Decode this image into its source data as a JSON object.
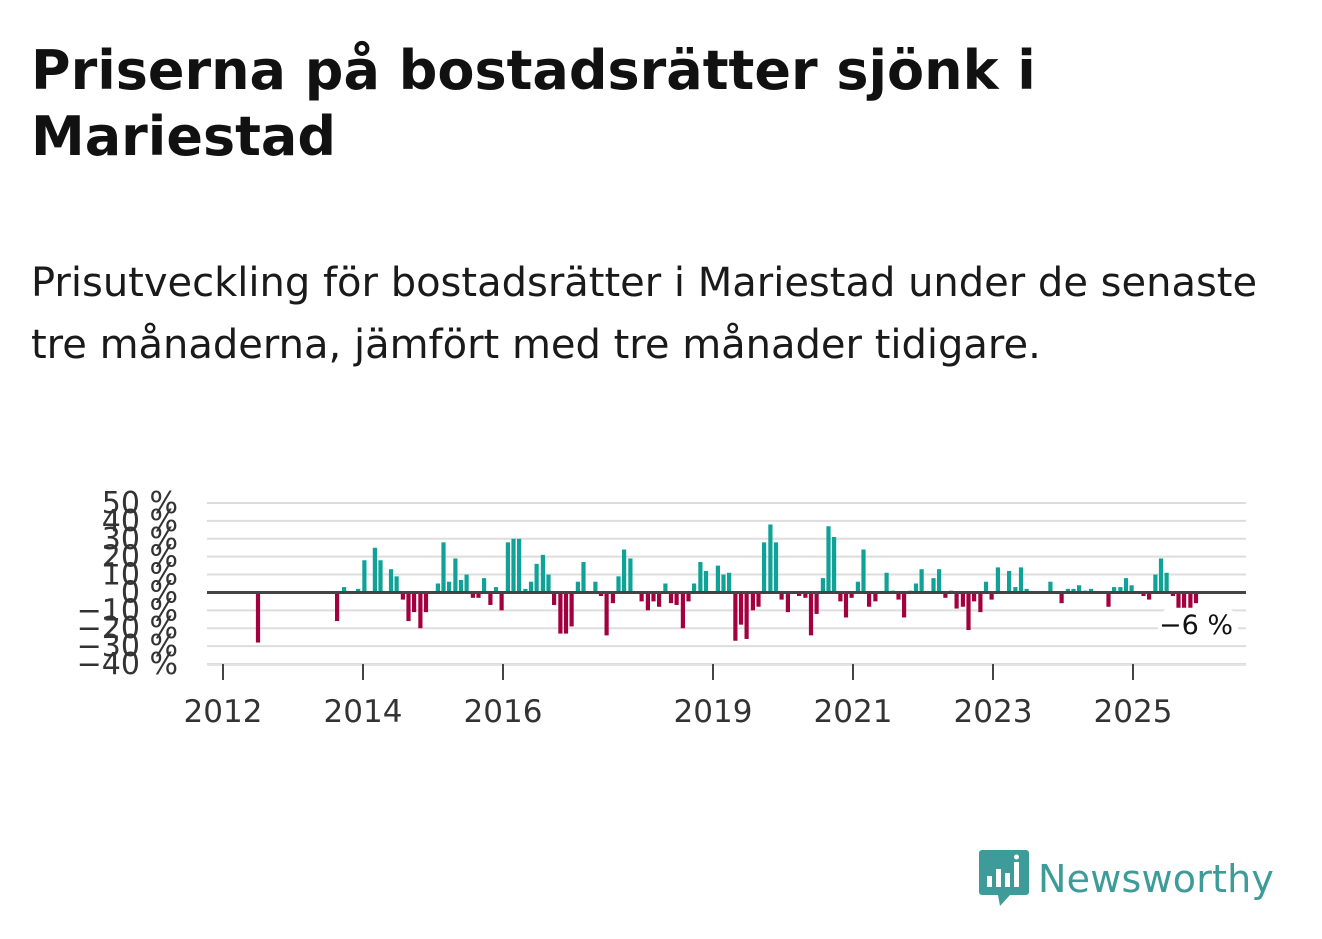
{
  "title": "Priserna på bostadsrätter sjönk i Mariestad",
  "subtitle": "Prisutveckling för bostadsrätter i Mariestad under de senaste tre månaderna, jämfört med tre månader tidigare.",
  "brand": {
    "name": "Newsworthy",
    "color": "#3d9c9a",
    "icon": "newsworthy-chart-icon"
  },
  "colors": {
    "positive": "#0fa397",
    "negative": "#a3003f",
    "zero_line": "#444444",
    "grid": "#dddddd"
  },
  "chart_data": {
    "type": "bar",
    "title": "",
    "xlabel": "",
    "ylabel": "",
    "ylim": [
      -40,
      50
    ],
    "y_ticks": [
      -40,
      -30,
      -20,
      -10,
      0,
      10,
      20,
      30,
      40,
      50
    ],
    "y_tick_labels": [
      "−40 %",
      "−30 %",
      "−20 %",
      "−10 %",
      "0 %",
      "10 %",
      "20 %",
      "30 %",
      "40 %",
      "50 %"
    ],
    "x_ticks": [
      2012,
      2014,
      2016,
      2019,
      2021,
      2023,
      2025
    ],
    "x_tick_labels": [
      "2012",
      "2014",
      "2016",
      "2019",
      "2021",
      "2023",
      "2025"
    ],
    "x_start": 2012,
    "end_label": "−6 %",
    "series": [
      {
        "name": "Prisutveckling",
        "points": [
          [
            2012.5,
            -28
          ],
          [
            2013.63,
            -16
          ],
          [
            2013.73,
            3
          ],
          [
            2013.93,
            2
          ],
          [
            2014.02,
            18
          ],
          [
            2014.17,
            25
          ],
          [
            2014.25,
            18
          ],
          [
            2014.4,
            13
          ],
          [
            2014.48,
            9
          ],
          [
            2014.57,
            -4
          ],
          [
            2014.65,
            -16
          ],
          [
            2014.73,
            -11
          ],
          [
            2014.82,
            -20
          ],
          [
            2014.9,
            -11
          ],
          [
            2015.07,
            5
          ],
          [
            2015.15,
            28
          ],
          [
            2015.23,
            6
          ],
          [
            2015.32,
            19
          ],
          [
            2015.4,
            7
          ],
          [
            2015.48,
            10
          ],
          [
            2015.57,
            -3
          ],
          [
            2015.65,
            -3
          ],
          [
            2015.73,
            8
          ],
          [
            2015.82,
            -7
          ],
          [
            2015.9,
            3
          ],
          [
            2015.98,
            -10
          ],
          [
            2016.07,
            28
          ],
          [
            2016.15,
            30
          ],
          [
            2016.23,
            30
          ],
          [
            2016.32,
            2
          ],
          [
            2016.4,
            6
          ],
          [
            2016.48,
            16
          ],
          [
            2016.57,
            21
          ],
          [
            2016.65,
            10
          ],
          [
            2016.73,
            -7
          ],
          [
            2016.82,
            -23
          ],
          [
            2016.9,
            -23
          ],
          [
            2016.98,
            -19
          ],
          [
            2017.07,
            6
          ],
          [
            2017.15,
            17
          ],
          [
            2017.32,
            6
          ],
          [
            2017.4,
            -2
          ],
          [
            2017.48,
            -24
          ],
          [
            2017.57,
            -6
          ],
          [
            2017.65,
            9
          ],
          [
            2017.73,
            24
          ],
          [
            2017.82,
            19
          ],
          [
            2017.98,
            -5
          ],
          [
            2018.07,
            -10
          ],
          [
            2018.15,
            -5
          ],
          [
            2018.23,
            -8
          ],
          [
            2018.32,
            5
          ],
          [
            2018.4,
            -6
          ],
          [
            2018.48,
            -7
          ],
          [
            2018.57,
            -20
          ],
          [
            2018.65,
            -5
          ],
          [
            2018.73,
            5
          ],
          [
            2018.82,
            17
          ],
          [
            2018.9,
            12
          ],
          [
            2019.07,
            15
          ],
          [
            2019.15,
            10
          ],
          [
            2019.23,
            11
          ],
          [
            2019.32,
            -27
          ],
          [
            2019.4,
            -18
          ],
          [
            2019.48,
            -26
          ],
          [
            2019.57,
            -10
          ],
          [
            2019.65,
            -8
          ],
          [
            2019.73,
            28
          ],
          [
            2019.82,
            38
          ],
          [
            2019.9,
            28
          ],
          [
            2019.98,
            -4
          ],
          [
            2020.07,
            -11
          ],
          [
            2020.23,
            -2
          ],
          [
            2020.32,
            -3
          ],
          [
            2020.4,
            -24
          ],
          [
            2020.48,
            -12
          ],
          [
            2020.57,
            8
          ],
          [
            2020.65,
            37
          ],
          [
            2020.73,
            31
          ],
          [
            2020.82,
            -5
          ],
          [
            2020.9,
            -14
          ],
          [
            2020.98,
            -3
          ],
          [
            2021.07,
            6
          ],
          [
            2021.15,
            24
          ],
          [
            2021.23,
            -8
          ],
          [
            2021.32,
            -5
          ],
          [
            2021.48,
            11
          ],
          [
            2021.57,
            1
          ],
          [
            2021.65,
            -4
          ],
          [
            2021.73,
            -14
          ],
          [
            2021.82,
            1
          ],
          [
            2021.9,
            5
          ],
          [
            2021.98,
            13
          ],
          [
            2022.15,
            8
          ],
          [
            2022.23,
            13
          ],
          [
            2022.32,
            -3
          ],
          [
            2022.4,
            1
          ],
          [
            2022.48,
            -9
          ],
          [
            2022.57,
            -8
          ],
          [
            2022.65,
            -21
          ],
          [
            2022.73,
            -5
          ],
          [
            2022.82,
            -11
          ],
          [
            2022.9,
            6
          ],
          [
            2022.98,
            -4
          ],
          [
            2023.07,
            14
          ],
          [
            2023.23,
            12
          ],
          [
            2023.32,
            3
          ],
          [
            2023.4,
            14
          ],
          [
            2023.48,
            2
          ],
          [
            2023.82,
            6
          ],
          [
            2023.98,
            -6
          ],
          [
            2024.07,
            2
          ],
          [
            2024.15,
            2
          ],
          [
            2024.23,
            4
          ],
          [
            2024.32,
            1
          ],
          [
            2024.4,
            2
          ],
          [
            2024.65,
            -8
          ],
          [
            2024.73,
            3
          ],
          [
            2024.82,
            3
          ],
          [
            2024.9,
            8
          ],
          [
            2024.98,
            4
          ],
          [
            2025.15,
            -2
          ],
          [
            2025.23,
            -4
          ],
          [
            2025.32,
            10
          ],
          [
            2025.4,
            19
          ],
          [
            2025.48,
            11
          ],
          [
            2025.57,
            -2
          ],
          [
            2025.65,
            -14
          ],
          [
            2025.73,
            -11
          ],
          [
            2025.82,
            -10
          ],
          [
            2025.9,
            -6
          ]
        ]
      }
    ]
  }
}
